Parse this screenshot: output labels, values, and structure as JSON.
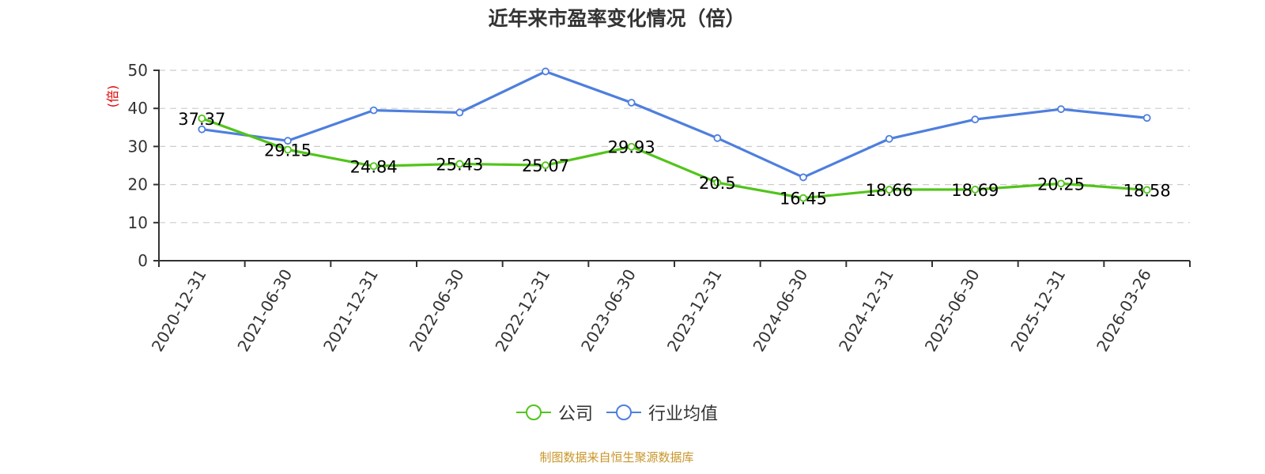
{
  "title": "近年来市盈率变化情况（倍）",
  "footer": "制图数据来自恒生聚源数据库",
  "legend": {
    "company_label": "公司",
    "industry_label": "行业均值"
  },
  "colors": {
    "company": "#52c41a",
    "industry": "#4e7fde",
    "grid": "#cccccc",
    "axis": "#333333",
    "unit": "#e00000",
    "footer": "#c8962a"
  },
  "chart_data": {
    "type": "line",
    "title": "近年来市盈率变化情况（倍）",
    "xlabel": "",
    "ylabel": "(倍)",
    "ylim": [
      0,
      50
    ],
    "yticks": [
      0,
      10,
      20,
      30,
      40,
      50
    ],
    "grid": true,
    "legend_position": "bottom",
    "categories": [
      "2020-12-31",
      "2021-06-30",
      "2021-12-31",
      "2022-06-30",
      "2022-12-31",
      "2023-06-30",
      "2023-12-31",
      "2024-06-30",
      "2024-12-31",
      "2025-06-30",
      "2025-12-31",
      "2026-03-26"
    ],
    "series": [
      {
        "name": "公司",
        "values": [
          37.37,
          29.15,
          24.84,
          25.43,
          25.07,
          29.93,
          20.5,
          16.45,
          18.66,
          18.69,
          20.25,
          18.58
        ],
        "labels": [
          "37.37",
          "29.15",
          "24.84",
          "25.43",
          "25.07",
          "29.93",
          "20.5",
          "16.45",
          "18.66",
          "18.69",
          "20.25",
          "18.58"
        ]
      },
      {
        "name": "行业均值",
        "values": [
          34.5,
          31.5,
          39.5,
          38.9,
          49.7,
          41.5,
          32.2,
          21.9,
          32.0,
          37.1,
          39.8,
          37.5
        ]
      }
    ]
  }
}
